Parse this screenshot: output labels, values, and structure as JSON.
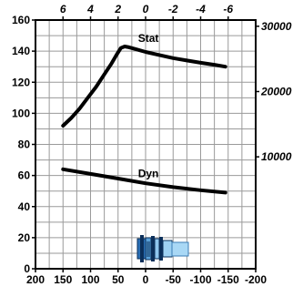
{
  "chart_data": {
    "type": "line",
    "title": "",
    "xlabel": "",
    "ylabel": "",
    "grid": true,
    "x_axis_bottom": {
      "range": [
        200,
        -200
      ],
      "ticks": [
        200,
        150,
        100,
        50,
        0,
        -50,
        -100,
        -150,
        -200
      ],
      "tick_labels": [
        "200",
        "150",
        "100",
        "50",
        "0",
        "-50",
        "-100",
        "-150",
        "-200"
      ]
    },
    "x_axis_top": {
      "ticks": [
        6,
        4,
        2,
        0,
        -2,
        -4,
        -6
      ],
      "tick_labels": [
        "6",
        "4",
        "2",
        "0",
        "-2",
        "-4",
        "-6"
      ]
    },
    "y_axis_left": {
      "range": [
        0,
        160
      ],
      "ticks": [
        0,
        20,
        40,
        60,
        80,
        100,
        120,
        140,
        160
      ],
      "tick_labels": [
        "0",
        "20",
        "40",
        "60",
        "80",
        "100",
        "120",
        "140",
        "160"
      ]
    },
    "y_axis_right": {
      "ticks": [
        10000,
        20000,
        30000
      ],
      "tick_labels": [
        "10000",
        "20000",
        "30000"
      ]
    },
    "series": [
      {
        "name": "Stat",
        "color": "#000000",
        "points": [
          [
            150,
            92
          ],
          [
            135,
            97
          ],
          [
            120,
            103
          ],
          [
            105,
            110
          ],
          [
            90,
            117
          ],
          [
            75,
            125
          ],
          [
            62,
            132
          ],
          [
            52,
            138
          ],
          [
            45,
            142
          ],
          [
            38,
            143
          ],
          [
            30,
            142.5
          ],
          [
            15,
            141
          ],
          [
            0,
            139.5
          ],
          [
            -25,
            137.5
          ],
          [
            -50,
            135.5
          ],
          [
            -75,
            134
          ],
          [
            -100,
            132.5
          ],
          [
            -125,
            131.2
          ],
          [
            -145,
            130
          ]
        ]
      },
      {
        "name": "Dyn",
        "color": "#000000",
        "points": [
          [
            150,
            64
          ],
          [
            100,
            61
          ],
          [
            50,
            58
          ],
          [
            0,
            55
          ],
          [
            -50,
            52.5
          ],
          [
            -100,
            50.5
          ],
          [
            -145,
            49
          ]
        ]
      }
    ],
    "connector_icon": "hydraulic-connector-icon"
  }
}
